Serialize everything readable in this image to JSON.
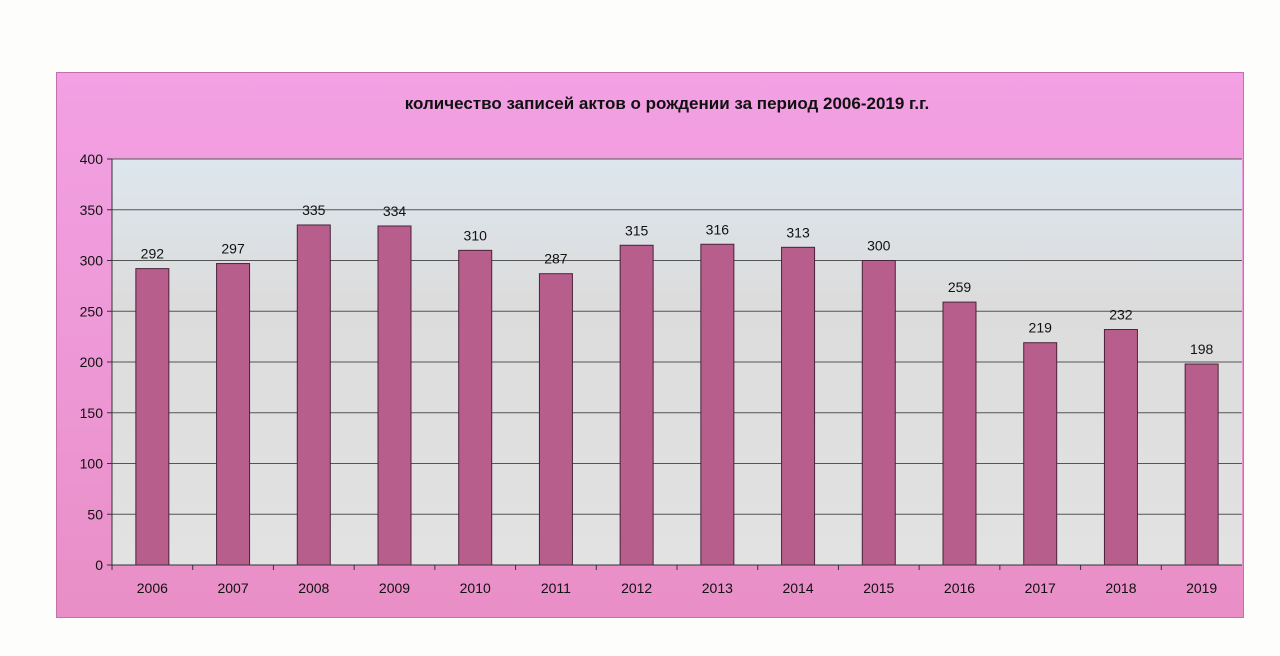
{
  "chart_data": {
    "type": "bar",
    "title": "количество записей актов о рождении за период 2006-2019 г.г.",
    "xlabel": "",
    "ylabel": "",
    "categories": [
      "2006",
      "2007",
      "2008",
      "2009",
      "2010",
      "2011",
      "2012",
      "2013",
      "2014",
      "2015",
      "2016",
      "2017",
      "2018",
      "2019"
    ],
    "values": [
      292,
      297,
      335,
      334,
      310,
      287,
      315,
      316,
      313,
      300,
      259,
      219,
      232,
      198
    ],
    "ylim": [
      0,
      400
    ],
    "yticks": [
      0,
      50,
      100,
      150,
      200,
      250,
      300,
      350,
      400
    ],
    "grid": true,
    "legend": "none",
    "colors": {
      "frame": "#ee9ad8",
      "plot_area": "#dcdcdc",
      "bar": "#b85e8c"
    }
  }
}
